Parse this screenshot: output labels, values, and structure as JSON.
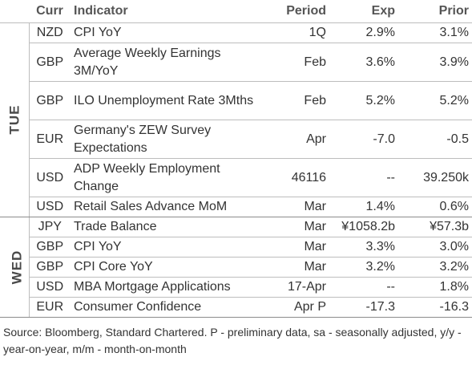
{
  "header": {
    "curr": "Curr",
    "indicator": "Indicator",
    "period": "Period",
    "exp": "Exp",
    "prior": "Prior"
  },
  "days": {
    "tue": "TUE",
    "wed": "WED"
  },
  "rows": [
    {
      "curr": "NZD",
      "indicator": "CPI YoY",
      "period": "1Q",
      "exp": "2.9%",
      "prior": "3.1%"
    },
    {
      "curr": "GBP",
      "indicator": "Average Weekly Earnings 3M/YoY",
      "period": "Feb",
      "exp": "3.6%",
      "prior": "3.9%"
    },
    {
      "curr": "GBP",
      "indicator": "ILO Unemployment Rate 3Mths",
      "period": "Feb",
      "exp": "5.2%",
      "prior": "5.2%"
    },
    {
      "curr": "EUR",
      "indicator": "Germany's ZEW Survey Expectations",
      "period": "Apr",
      "exp": "-7.0",
      "prior": "-0.5"
    },
    {
      "curr": "USD",
      "indicator": "ADP Weekly Employment Change",
      "period": "46116",
      "exp": "--",
      "prior": "39.250k"
    },
    {
      "curr": "USD",
      "indicator": "Retail Sales Advance MoM",
      "period": "Mar",
      "exp": "1.4%",
      "prior": "0.6%"
    },
    {
      "curr": "JPY",
      "indicator": "Trade Balance",
      "period": "Mar",
      "exp": "¥1058.2b",
      "prior": "¥57.3b"
    },
    {
      "curr": "GBP",
      "indicator": "CPI YoY",
      "period": "Mar",
      "exp": "3.3%",
      "prior": "3.0%"
    },
    {
      "curr": "GBP",
      "indicator": "CPI Core YoY",
      "period": "Mar",
      "exp": "3.2%",
      "prior": "3.2%"
    },
    {
      "curr": "USD",
      "indicator": "MBA Mortgage Applications",
      "period": "17-Apr",
      "exp": "--",
      "prior": "1.8%"
    },
    {
      "curr": "EUR",
      "indicator": "Consumer Confidence",
      "period": "Apr P",
      "exp": "-17.3",
      "prior": "-16.3"
    }
  ],
  "source": "Source: Bloomberg, Standard Chartered. P - preliminary data, sa - seasonally adjusted, y/y - year-on-year, m/m - month-on-month"
}
